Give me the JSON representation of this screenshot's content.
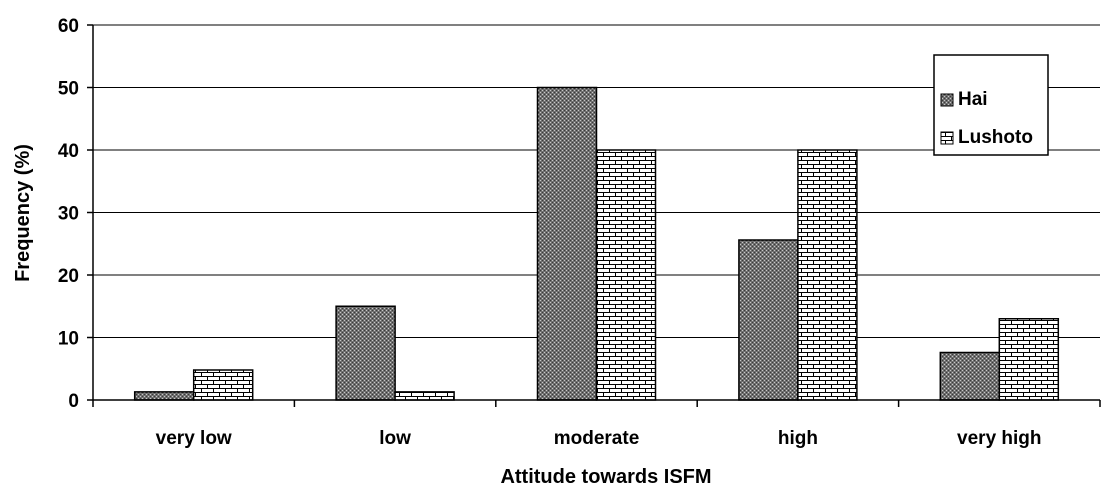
{
  "chart_data": {
    "type": "bar",
    "title": "",
    "xlabel": "Attitude towards ISFM",
    "ylabel": "Frequency (%)",
    "categories": [
      "very low",
      "low",
      "moderate",
      "high",
      "very high"
    ],
    "ylim": [
      0,
      60
    ],
    "yticks": [
      0,
      10,
      20,
      30,
      40,
      50,
      60
    ],
    "grid": "horizontal",
    "legend_position": "top-right",
    "series": [
      {
        "name": "Hai",
        "values": [
          1.3,
          15,
          50,
          25.6,
          7.6
        ]
      },
      {
        "name": "Lushoto",
        "values": [
          4.8,
          1.3,
          40,
          40,
          13
        ]
      }
    ]
  }
}
